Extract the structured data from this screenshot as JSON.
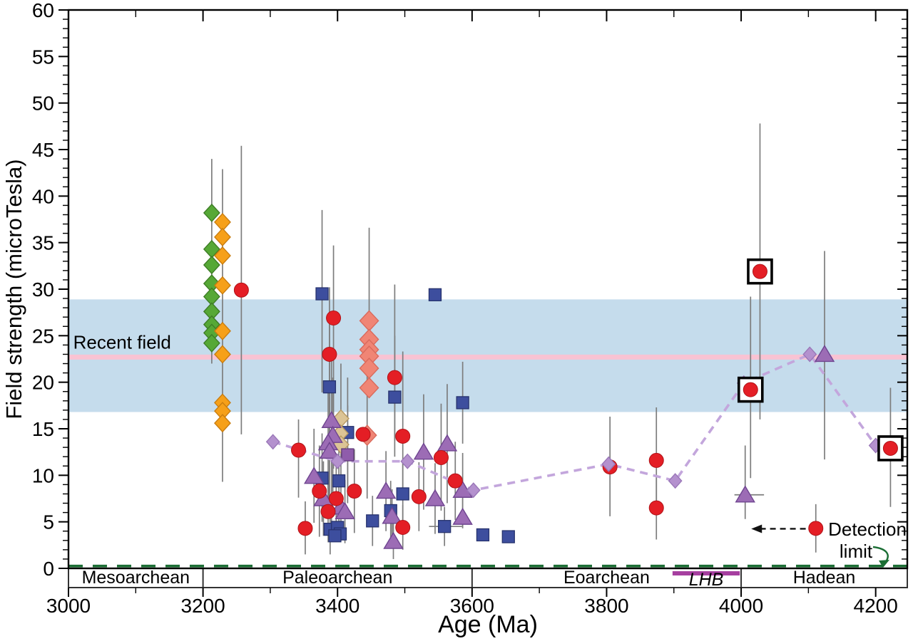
{
  "figure": {
    "type": "scientific scatter plot, paleomagnetic field strength vs age",
    "background": "#ffffff"
  },
  "chart_data": {
    "type": "scatter",
    "title": "",
    "xlabel": "Age (Ma)",
    "ylabel": "Field strength (microTesla)",
    "xlim": [
      3000,
      4247
    ],
    "ylim": [
      0,
      60
    ],
    "x_major_ticks": [
      3000,
      3200,
      3400,
      3600,
      3800,
      4000,
      4200
    ],
    "x_tick_labels": [
      "3000",
      "3200",
      "3400",
      "3600",
      "3800",
      "4000",
      "4200"
    ],
    "x_minor_step": 100,
    "y_major_ticks": [
      0,
      5,
      10,
      15,
      20,
      25,
      30,
      35,
      40,
      45,
      50,
      55,
      60
    ],
    "y_tick_labels": [
      "0",
      "5",
      "10",
      "15",
      "20",
      "25",
      "30",
      "35",
      "40",
      "45",
      "50",
      "55",
      "60"
    ],
    "y_minor_step": 1,
    "grid": false,
    "legend": "none",
    "point_format": "[age_ma, microtesla, yerr_lo, yerr_hi, xerr_lo_ma, xerr_hi_ma]",
    "error_bar_color": "#7d7d7d",
    "recent_field": {
      "label": "Recent field",
      "label_x": 3007,
      "label_y": 24.3,
      "band_lo": 16.8,
      "band_hi": 28.9,
      "band_color": "#c5dcec",
      "line_value": 22.7,
      "line_color": "#f9c3d3"
    },
    "detection_limit": {
      "label_line1": "Detection",
      "label_line2": "limit",
      "line_value": 0.25,
      "line_color": "#1b6e34",
      "point": [
        4111,
        4.3,
        1.7,
        6.9
      ],
      "arrow_y": 4.25,
      "arrow_from_x": 4096,
      "arrow_to_x": 4015
    },
    "eras": {
      "boundaries": [
        3000,
        3200,
        3600,
        4000,
        4247
      ],
      "labels": [
        "Mesoarchean",
        "Paleoarchean",
        "Eoarchean",
        "Hadean"
      ]
    },
    "lhb": {
      "label": "LHB",
      "start": 3898,
      "end": 3998,
      "color": "#a63fa0"
    },
    "series": [
      {
        "name": "green-diamonds",
        "marker": "diamond",
        "fill": "#56a836",
        "stroke": "#3e7d26",
        "points": [
          [
            3213,
            38.2,
            22,
            44
          ],
          [
            3213,
            34.3
          ],
          [
            3213,
            32.6
          ],
          [
            3213,
            30.6
          ],
          [
            3213,
            29.2
          ],
          [
            3213,
            27.6
          ],
          [
            3213,
            26.2
          ],
          [
            3213,
            25.3
          ],
          [
            3213,
            24.2
          ]
        ]
      },
      {
        "name": "orange-diamonds",
        "marker": "diamond",
        "fill": "#f6a019",
        "stroke": "#c97d10",
        "points": [
          [
            3229,
            37.2,
            9.3,
            42.9
          ],
          [
            3229,
            35.6
          ],
          [
            3229,
            33.6
          ],
          [
            3229,
            30.4
          ],
          [
            3229,
            25.5
          ],
          [
            3229,
            23.0
          ],
          [
            3229,
            17.8
          ],
          [
            3229,
            16.9
          ],
          [
            3229,
            15.6
          ]
        ]
      },
      {
        "name": "salmon-diamonds",
        "marker": "diamond-large",
        "fill": "#f08575",
        "stroke": "#d96a5c",
        "points": [
          [
            3447,
            26.6,
            18.3,
            36.6
          ],
          [
            3447,
            24.6
          ],
          [
            3447,
            23.5
          ],
          [
            3447,
            22.8
          ],
          [
            3447,
            21.5
          ],
          [
            3447,
            19.4
          ],
          [
            3444,
            14.3,
            7.5,
            21,
            3436,
            3457
          ]
        ]
      },
      {
        "name": "tan-diamonds",
        "marker": "diamond",
        "fill": "#dcc495",
        "stroke": "#b89a62",
        "points": [
          [
            3405,
            16.1,
            10,
            22
          ],
          [
            3404,
            14.5
          ],
          [
            3405,
            13.3
          ]
        ]
      },
      {
        "name": "navy-squares",
        "marker": "square",
        "fill": "#3d4e9e",
        "stroke": "#27336e",
        "points": [
          [
            3377,
            29.5,
            18.9,
            38.5
          ],
          [
            3545,
            29.4
          ],
          [
            3388,
            19.5,
            12,
            27
          ],
          [
            3485,
            18.4,
            12,
            25
          ],
          [
            3586,
            17.8,
            13.4,
            22.2
          ],
          [
            3415,
            14.6,
            8.5,
            20.5
          ],
          [
            3377,
            9.7,
            5,
            14.5
          ],
          [
            3402,
            9.4,
            5,
            14
          ],
          [
            3497,
            8.0,
            4.5,
            11.5
          ],
          [
            3479,
            6.2,
            3,
            9.4
          ],
          [
            3452,
            5.1,
            2.4,
            7.8
          ],
          [
            3559,
            4.5,
            2.4,
            6.6,
            3536,
            3585
          ],
          [
            3389,
            4.2,
            1.5,
            7
          ],
          [
            3400,
            4.4
          ],
          [
            3404,
            3.7
          ],
          [
            3396,
            3.5
          ],
          [
            3616,
            3.6
          ],
          [
            3654,
            3.4
          ]
        ]
      },
      {
        "name": "purple-triangles",
        "marker": "triangle",
        "fill": "#9c6cb5",
        "stroke": "#6f4590",
        "points": [
          [
            3391,
            15.9,
            4,
            22.5
          ],
          [
            3393,
            14.3,
            8,
            20.5
          ],
          [
            3386,
            13.5,
            7.5,
            19.5
          ],
          [
            3388,
            12.6,
            6.8,
            18.4
          ],
          [
            3365,
            9.9,
            4.9,
            15
          ],
          [
            3379,
            7.5,
            3.5,
            11.5
          ],
          [
            3405,
            6.6,
            3,
            10
          ],
          [
            3411,
            6.1,
            2.7,
            9.5
          ],
          [
            3472,
            8.3,
            4,
            12.6
          ],
          [
            3481,
            5.6,
            2.7,
            8.5
          ],
          [
            3483,
            2.9,
            1,
            4.8
          ],
          [
            3528,
            12.5,
            6.3,
            18.7
          ],
          [
            3563,
            13.4,
            7,
            19.8
          ],
          [
            3545,
            7.5,
            3.7,
            11.3
          ],
          [
            3586,
            8.4,
            4.4,
            12.4
          ],
          [
            3586,
            5.5,
            4.3,
            7.5
          ],
          [
            4006,
            7.9,
            5.3,
            13.2,
            3990,
            4034
          ],
          [
            4124,
            23.0,
            11.7,
            34.1
          ]
        ]
      },
      {
        "name": "violet-squares",
        "marker": "square",
        "fill": "#8f5cab",
        "stroke": "#5f3a78",
        "points": [
          [
            3415,
            12.2,
            7,
            17.5
          ]
        ]
      },
      {
        "name": "red-circles",
        "marker": "circle",
        "fill": "#e41e25",
        "stroke": "#b01318",
        "points": [
          [
            3257,
            29.9,
            14.4,
            45.4
          ],
          [
            3394,
            26.9,
            10.7,
            34.7,
            3383,
            3404
          ],
          [
            3388,
            23.0,
            7.6,
            30.2,
            3381,
            3399
          ],
          [
            3485,
            20.5,
            13.7,
            30.5
          ],
          [
            3438,
            14.4
          ],
          [
            3497,
            14.2,
            7.6,
            23.3
          ],
          [
            3342,
            12.7,
            7.6,
            16
          ],
          [
            3554,
            11.9,
            6.2,
            17.7
          ],
          [
            3575,
            9.4,
            5.2,
            13.6
          ],
          [
            3373,
            8.3,
            3.4,
            13.2
          ],
          [
            3425,
            8.3,
            3.8,
            12.8
          ],
          [
            3521,
            7.7,
            4,
            11.4
          ],
          [
            3398,
            7.5,
            3.9,
            11.2
          ],
          [
            3386,
            6.1,
            2.8,
            9.5
          ],
          [
            3497,
            4.4,
            2,
            6.8
          ],
          [
            3352,
            4.3,
            1.5,
            7.2
          ],
          [
            3805,
            10.9,
            5.6,
            16.3
          ],
          [
            3874,
            11.6,
            5.8,
            17.3
          ],
          [
            3874,
            6.5,
            3.1,
            9.7
          ]
        ]
      },
      {
        "name": "lavender-diamond-dashed-line",
        "marker": "diamond-small",
        "fill": "#b491ce",
        "stroke": "#9a77b8",
        "line": "dashed",
        "line_color": "#c3a6dc",
        "points": [
          [
            3304,
            13.6
          ],
          [
            3400,
            11.5
          ],
          [
            3504,
            11.5
          ],
          [
            3602,
            8.4
          ],
          [
            3803,
            11.2
          ],
          [
            3902,
            9.4
          ],
          [
            4004,
            19.9
          ],
          [
            4102,
            23.0
          ],
          [
            4200,
            13.2
          ]
        ]
      },
      {
        "name": "boxed-red-circles",
        "marker": "boxed-circle",
        "fill": "#e41e25",
        "stroke": "#000000",
        "points": [
          [
            4014,
            19.2,
            9.7,
            29.2
          ],
          [
            4028,
            31.9,
            16,
            47.8
          ],
          [
            4222,
            12.9,
            6.6,
            19.4
          ]
        ]
      }
    ]
  }
}
